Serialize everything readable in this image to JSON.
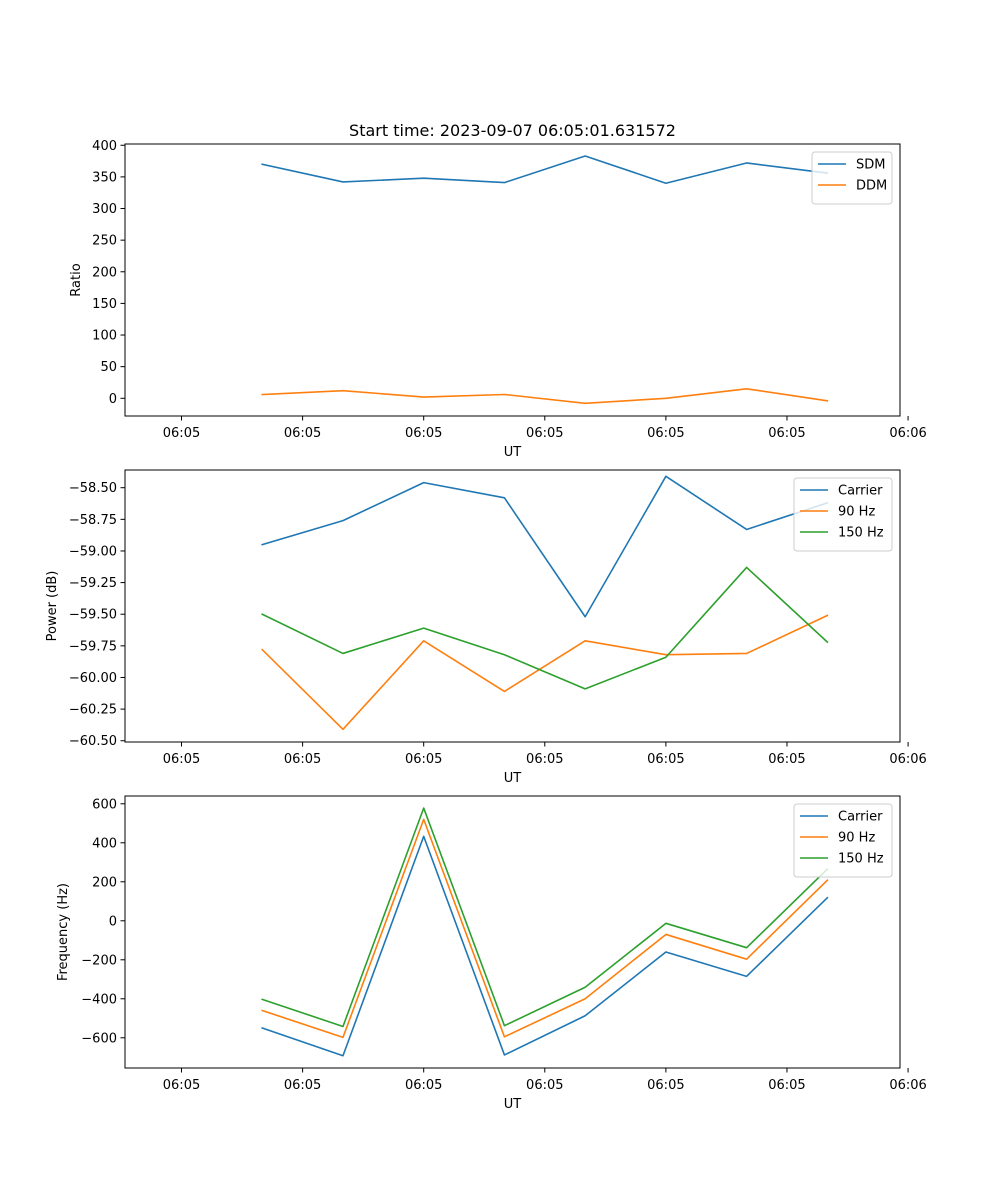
{
  "colors": {
    "blue": "#1f77b4",
    "orange": "#ff7f0e",
    "green": "#2ca02c"
  },
  "chart_data": [
    {
      "type": "line",
      "title": "Start time: 2023-09-07 06:05:01.631572",
      "xlabel": "UT",
      "ylabel": "Ratio",
      "x": [
        1,
        2,
        3,
        4,
        5,
        6,
        7,
        8
      ],
      "xlim": [
        -0.7,
        8.9
      ],
      "xticks": [
        0,
        1.5,
        3,
        4.5,
        6,
        7.5,
        9
      ],
      "xtick_labels": [
        "06:05",
        "06:05",
        "06:05",
        "06:05",
        "06:05",
        "06:05",
        "06:06"
      ],
      "ylim": [
        -28,
        402
      ],
      "yticks": [
        0,
        50,
        100,
        150,
        200,
        250,
        300,
        350,
        400
      ],
      "ytick_labels": [
        "0",
        "50",
        "100",
        "150",
        "200",
        "250",
        "300",
        "350",
        "400"
      ],
      "legend": "top-right",
      "series": [
        {
          "name": "SDM",
          "color": "#1f77b4",
          "values": [
            370,
            342,
            348,
            341,
            383,
            340,
            372,
            356
          ]
        },
        {
          "name": "DDM",
          "color": "#ff7f0e",
          "values": [
            6,
            12,
            2,
            6,
            -8,
            0,
            15,
            -4
          ]
        }
      ]
    },
    {
      "type": "line",
      "title": "",
      "xlabel": "UT",
      "ylabel": "Power (dB)",
      "x": [
        1,
        2,
        3,
        4,
        5,
        6,
        7,
        8
      ],
      "xlim": [
        -0.7,
        8.9
      ],
      "xticks": [
        0,
        1.5,
        3,
        4.5,
        6,
        7.5,
        9
      ],
      "xtick_labels": [
        "06:05",
        "06:05",
        "06:05",
        "06:05",
        "06:05",
        "06:05",
        "06:06"
      ],
      "ylim": [
        -60.51,
        -58.36
      ],
      "yticks": [
        -58.5,
        -58.75,
        -59.0,
        -59.25,
        -59.5,
        -59.75,
        -60.0,
        -60.25,
        -60.5
      ],
      "ytick_labels": [
        "−58.50",
        "−58.75",
        "−59.00",
        "−59.25",
        "−59.50",
        "−59.75",
        "−60.00",
        "−60.25",
        "−60.50"
      ],
      "legend": "top-right",
      "series": [
        {
          "name": "Carrier",
          "color": "#1f77b4",
          "values": [
            -58.95,
            -58.76,
            -58.46,
            -58.58,
            -59.52,
            -58.41,
            -58.83,
            -58.62
          ]
        },
        {
          "name": "90 Hz",
          "color": "#ff7f0e",
          "values": [
            -59.78,
            -60.41,
            -59.71,
            -60.11,
            -59.71,
            -59.82,
            -59.81,
            -59.51
          ]
        },
        {
          "name": "150 Hz",
          "color": "#2ca02c",
          "values": [
            -59.5,
            -59.81,
            -59.61,
            -59.82,
            -60.09,
            -59.84,
            -59.13,
            -59.72
          ]
        }
      ]
    },
    {
      "type": "line",
      "title": "",
      "xlabel": "UT",
      "ylabel": "Frequency (Hz)",
      "x": [
        1,
        2,
        3,
        4,
        5,
        6,
        7,
        8
      ],
      "xlim": [
        -0.7,
        8.9
      ],
      "xticks": [
        0,
        1.5,
        3,
        4.5,
        6,
        7.5,
        9
      ],
      "xtick_labels": [
        "06:05",
        "06:05",
        "06:05",
        "06:05",
        "06:05",
        "06:05",
        "06:06"
      ],
      "ylim": [
        -755,
        640
      ],
      "yticks": [
        600,
        400,
        200,
        0,
        -200,
        -400,
        -600
      ],
      "ytick_labels": [
        "600",
        "400",
        "200",
        "0",
        "−200",
        "−400",
        "−600"
      ],
      "legend": "top-right",
      "series": [
        {
          "name": "Carrier",
          "color": "#1f77b4",
          "values": [
            -550,
            -692,
            433,
            -688,
            -487,
            -160,
            -285,
            118
          ]
        },
        {
          "name": "90 Hz",
          "color": "#ff7f0e",
          "values": [
            -460,
            -598,
            520,
            -595,
            -400,
            -70,
            -197,
            208
          ]
        },
        {
          "name": "150 Hz",
          "color": "#2ca02c",
          "values": [
            -403,
            -542,
            578,
            -538,
            -341,
            -13,
            -138,
            265
          ]
        }
      ]
    }
  ]
}
